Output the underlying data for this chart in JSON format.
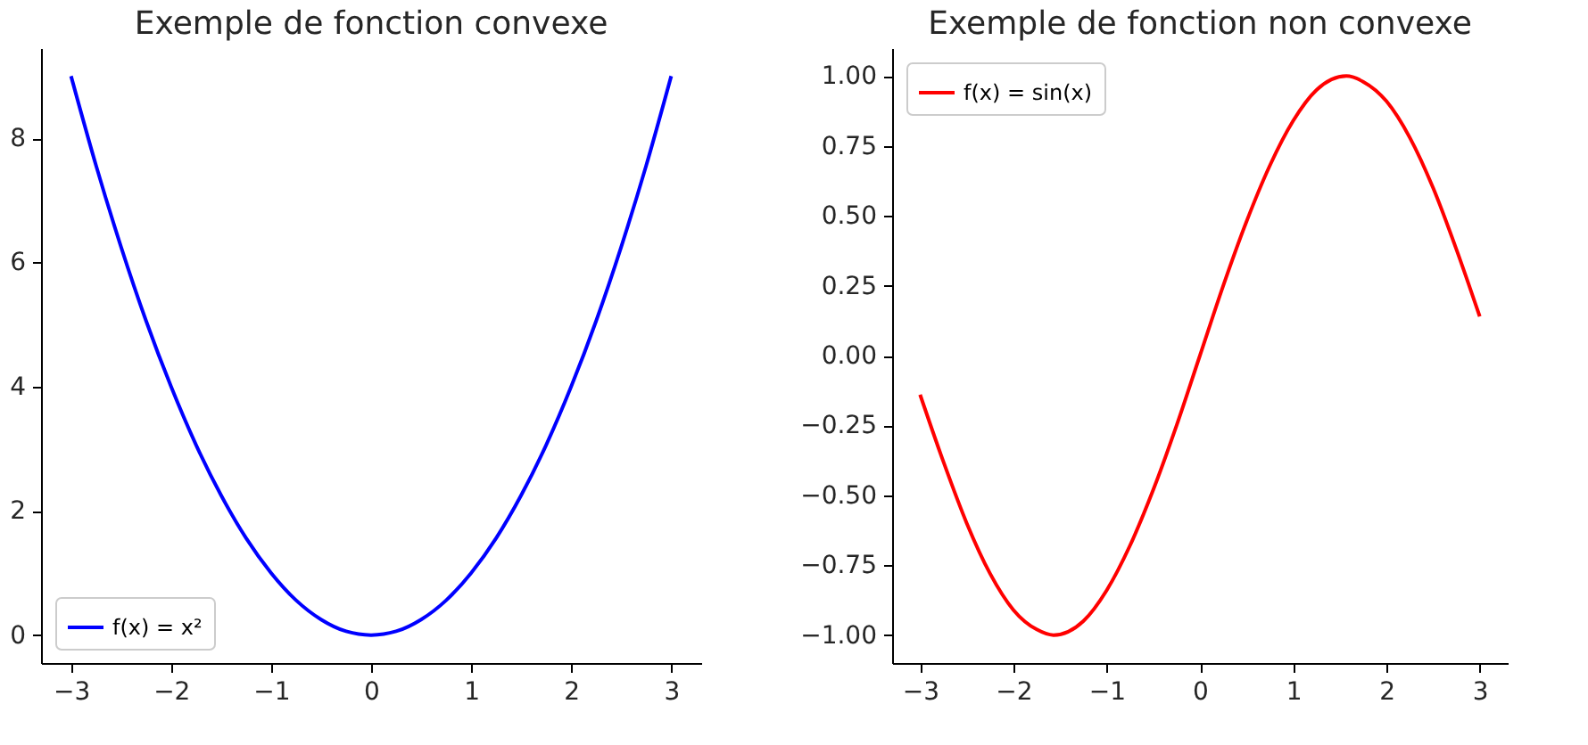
{
  "chart_data": [
    {
      "type": "line",
      "title": "Exemple de fonction convexe",
      "x": [
        -3,
        -2.75,
        -2.5,
        -2.25,
        -2,
        -1.75,
        -1.5,
        -1.25,
        -1,
        -0.75,
        -0.5,
        -0.25,
        0,
        0.25,
        0.5,
        0.75,
        1,
        1.25,
        1.5,
        1.75,
        2,
        2.25,
        2.5,
        2.75,
        3
      ],
      "series": [
        {
          "name": "f(x) = x²",
          "color": "#0000ff",
          "values": [
            9,
            7.56,
            6.25,
            5.06,
            4,
            3.06,
            2.25,
            1.56,
            1,
            0.56,
            0.25,
            0.06,
            0,
            0.06,
            0.25,
            0.56,
            1,
            1.56,
            2.25,
            3.06,
            4,
            5.06,
            6.25,
            7.56,
            9
          ]
        }
      ],
      "xlim": [
        -3.3,
        3.3
      ],
      "ylim": [
        -0.45,
        9.45
      ],
      "xticks": [
        -3,
        -2,
        -1,
        0,
        1,
        2,
        3
      ],
      "yticks": [
        0,
        2,
        4,
        6,
        8
      ],
      "legend": "bottom left"
    },
    {
      "type": "line",
      "title": "Exemple de fonction non convexe",
      "x": [
        -3,
        -2.75,
        -2.5,
        -2.25,
        -2,
        -1.75,
        -1.57,
        -1.25,
        -1,
        -0.75,
        -0.5,
        -0.25,
        0,
        0.25,
        0.5,
        0.75,
        1,
        1.25,
        1.57,
        1.75,
        2,
        2.25,
        2.5,
        2.75,
        3
      ],
      "series": [
        {
          "name": "f(x) = sin(x)",
          "color": "#ff0000",
          "values": [
            -0.14,
            -0.38,
            -0.6,
            -0.78,
            -0.91,
            -0.98,
            -1,
            -0.95,
            -0.84,
            -0.68,
            -0.48,
            -0.25,
            0,
            0.25,
            0.48,
            0.68,
            0.84,
            0.95,
            1,
            0.98,
            0.91,
            0.78,
            0.6,
            0.38,
            0.14
          ]
        }
      ],
      "xlim": [
        -3.3,
        3.3
      ],
      "ylim": [
        -1.1,
        1.1
      ],
      "xticks": [
        -3,
        -2,
        -1,
        0,
        1,
        2,
        3
      ],
      "yticks": [
        {
          "value": -1,
          "label": "−1.00"
        },
        {
          "value": -0.75,
          "label": "−0.75"
        },
        {
          "value": -0.5,
          "label": "−0.50"
        },
        {
          "value": -0.25,
          "label": "−0.25"
        },
        {
          "value": 0,
          "label": "0.00"
        },
        {
          "value": 0.25,
          "label": "0.25"
        },
        {
          "value": 0.5,
          "label": "0.50"
        },
        {
          "value": 0.75,
          "label": "0.75"
        },
        {
          "value": 1,
          "label": "1.00"
        }
      ],
      "legend": "top left"
    }
  ]
}
